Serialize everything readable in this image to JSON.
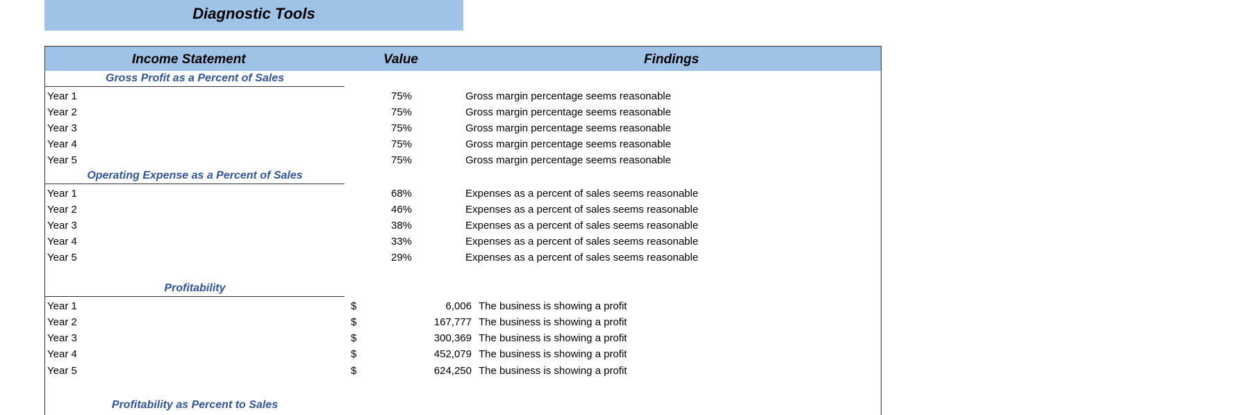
{
  "title": "Diagnostic Tools",
  "header": {
    "col1": "Income Statement",
    "col2": "Value",
    "col3": "Findings"
  },
  "sections": {
    "gross": {
      "title": "Gross Profit as a Percent of Sales",
      "rows": [
        {
          "label": "Year 1",
          "value": "75%",
          "finding": "Gross margin percentage seems reasonable"
        },
        {
          "label": "Year 2",
          "value": "75%",
          "finding": "Gross margin percentage seems reasonable"
        },
        {
          "label": "Year 3",
          "value": "75%",
          "finding": "Gross margin percentage seems reasonable"
        },
        {
          "label": "Year 4",
          "value": "75%",
          "finding": "Gross margin percentage seems reasonable"
        },
        {
          "label": "Year 5",
          "value": "75%",
          "finding": "Gross margin percentage seems reasonable"
        }
      ]
    },
    "opex": {
      "title": "Operating Expense as a Percent of Sales",
      "rows": [
        {
          "label": "Year 1",
          "value": "68%",
          "finding": "Expenses as a percent of sales seems reasonable"
        },
        {
          "label": "Year 2",
          "value": "46%",
          "finding": "Expenses as a percent of sales seems reasonable"
        },
        {
          "label": "Year 3",
          "value": "38%",
          "finding": "Expenses as a percent of sales seems reasonable"
        },
        {
          "label": "Year 4",
          "value": "33%",
          "finding": "Expenses as a percent of sales seems reasonable"
        },
        {
          "label": "Year 5",
          "value": "29%",
          "finding": "Expenses as a percent of sales seems reasonable"
        }
      ]
    },
    "profit": {
      "title": "Profitability",
      "rows": [
        {
          "label": "Year 1",
          "currency": "$",
          "value": "6,006",
          "finding": "The business is showing a profit"
        },
        {
          "label": "Year 2",
          "currency": "$",
          "value": "167,777",
          "finding": "The business is showing a profit"
        },
        {
          "label": "Year 3",
          "currency": "$",
          "value": "300,369",
          "finding": "The business is showing a profit"
        },
        {
          "label": "Year 4",
          "currency": "$",
          "value": "452,079",
          "finding": "The business is showing a profit"
        },
        {
          "label": "Year 5",
          "currency": "$",
          "value": "624,250",
          "finding": "The business is showing a profit"
        }
      ]
    },
    "profit_pct": {
      "title": "Profitability as Percent to Sales"
    }
  }
}
